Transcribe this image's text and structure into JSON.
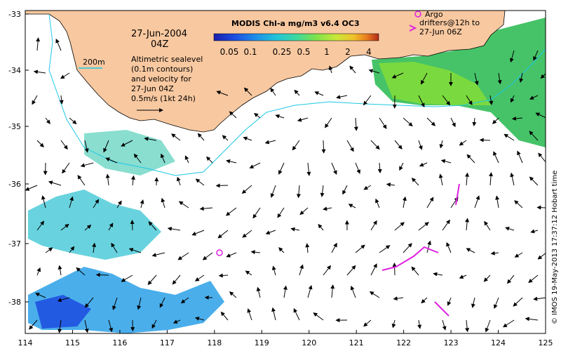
{
  "header": {
    "date_line": "27-Jun-2004",
    "time_line": "04Z"
  },
  "colorbar": {
    "title": "MODIS Chl-a mg/m3 v6.4 OC3",
    "tick_labels": [
      "0.05",
      "0.1",
      "0.25",
      "0.5",
      "1",
      "2",
      "4"
    ],
    "colors": [
      "#1b1fa8",
      "#1c4be0",
      "#1e8de8",
      "#22c4d8",
      "#3fd8a0",
      "#7fe24a",
      "#c8e83a",
      "#f0c02a",
      "#e87a20",
      "#b02a18"
    ]
  },
  "legend": {
    "contour_label": "200m",
    "contour_color": "#1ec8e6",
    "description_lines": [
      "Altimetric sealevel",
      "(0.1m contours)",
      "and velocity for",
      "27-Jun 04Z",
      "0.5m/s (1kt 24h)"
    ],
    "argo_lines": [
      "Argo",
      "drifters@12h to",
      "27-Jun 06Z"
    ],
    "argo_color": "#e020e0"
  },
  "axes": {
    "x_ticks": [
      "114",
      "115",
      "116",
      "117",
      "118",
      "119",
      "120",
      "121",
      "122",
      "123",
      "124",
      "125"
    ],
    "y_ticks": [
      "-33",
      "-34",
      "-35",
      "-36",
      "-37",
      "-38"
    ]
  },
  "colors": {
    "land": "#f8c8a0",
    "coast": "#000000",
    "ocean": "#ffffff"
  },
  "credit": "© IMOS 19-May-2013 17:37:12 Hobart time"
}
